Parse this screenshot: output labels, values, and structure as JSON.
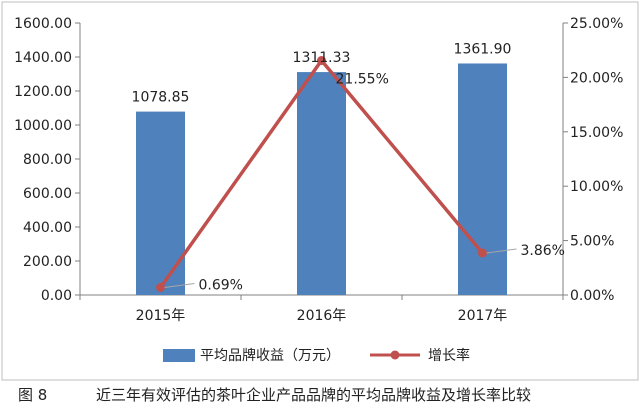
{
  "chart_data": {
    "type": "bar",
    "categories": [
      "2015年",
      "2016年",
      "2017年"
    ],
    "series": [
      {
        "name": "平均品牌收益（万元）",
        "kind": "bar",
        "axis": "left",
        "values": [
          1078.85,
          1311.33,
          1361.9
        ],
        "labels": [
          "1078.85",
          "1311.33",
          "1361.90"
        ],
        "color": "#4f81bd"
      },
      {
        "name": "增长率",
        "kind": "line",
        "axis": "right",
        "values": [
          0.69,
          21.55,
          3.86
        ],
        "labels": [
          "0.69%",
          "21.55%",
          "3.86%"
        ],
        "color": "#c0504d"
      }
    ],
    "y_left": {
      "min": 0,
      "max": 1600,
      "step": 200,
      "ticks": [
        "0.00",
        "200.00",
        "400.00",
        "600.00",
        "800.00",
        "1000.00",
        "1200.00",
        "1400.00",
        "1600.00"
      ]
    },
    "y_right": {
      "min": 0,
      "max": 25,
      "step": 5,
      "ticks": [
        "0.00%",
        "5.00%",
        "10.00%",
        "15.00%",
        "20.00%",
        "25.00%"
      ]
    },
    "grid": false,
    "legend": "bottom",
    "title": "",
    "xlabel": "",
    "ylabel": ""
  },
  "caption": {
    "figure_no": "图 8",
    "text": "近三年有效评估的茶叶企业产品品牌的平均品牌收益及增长率比较"
  },
  "colors": {
    "axis": "#808080",
    "text": "#222222",
    "frame": "#bfbfbf"
  }
}
